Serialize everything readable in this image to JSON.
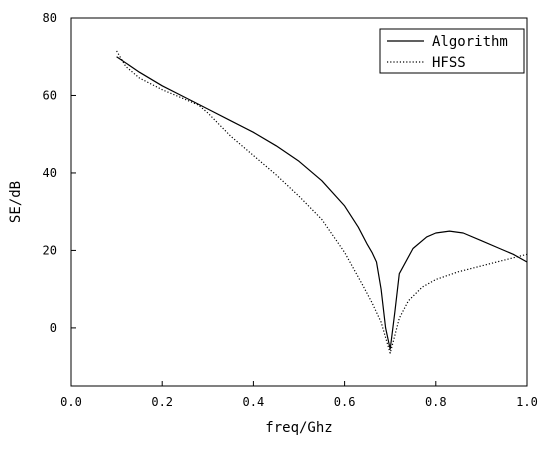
{
  "chart_data": {
    "type": "line",
    "title": "",
    "xlabel": "freq/Ghz",
    "ylabel": "SE/dB",
    "xlim": [
      0.0,
      1.0
    ],
    "ylim": [
      -15,
      80
    ],
    "x_ticks": [
      "0.0",
      "0.2",
      "0.4",
      "0.6",
      "0.8",
      "1.0"
    ],
    "y_ticks": [
      "0",
      "20",
      "40",
      "60",
      "80"
    ],
    "legend_position": "top-right",
    "grid": false,
    "series": [
      {
        "name": "Algorithm",
        "style": "solid",
        "color": "#000000",
        "x": [
          0.1,
          0.15,
          0.2,
          0.25,
          0.3,
          0.35,
          0.4,
          0.45,
          0.5,
          0.55,
          0.6,
          0.63,
          0.65,
          0.66,
          0.67,
          0.68,
          0.69,
          0.7,
          0.71,
          0.72,
          0.75,
          0.78,
          0.8,
          0.83,
          0.86,
          0.9,
          0.94,
          0.97,
          1.0
        ],
        "y": [
          70,
          66,
          62.5,
          59.5,
          56.5,
          53.5,
          50.5,
          47,
          43,
          38,
          31.5,
          26,
          21.5,
          19.5,
          17,
          10,
          0,
          -5.5,
          4,
          14,
          20.5,
          23.5,
          24.5,
          25,
          24.5,
          22.5,
          20.5,
          19,
          17
        ]
      },
      {
        "name": "HFSS",
        "style": "dotted",
        "color": "#000000",
        "x": [
          0.1,
          0.12,
          0.15,
          0.2,
          0.25,
          0.28,
          0.3,
          0.35,
          0.4,
          0.45,
          0.5,
          0.55,
          0.6,
          0.64,
          0.66,
          0.68,
          0.69,
          0.7,
          0.71,
          0.72,
          0.74,
          0.77,
          0.8,
          0.85,
          0.9,
          0.95,
          1.0
        ],
        "y": [
          71.5,
          67.5,
          64.5,
          61.5,
          59,
          57.5,
          55.5,
          49.5,
          44.5,
          39.5,
          34,
          28,
          19.5,
          11,
          6.5,
          1.5,
          -2.5,
          -6.5,
          -2,
          2.5,
          7,
          10.5,
          12.5,
          14.5,
          16,
          17.5,
          19
        ]
      }
    ]
  }
}
